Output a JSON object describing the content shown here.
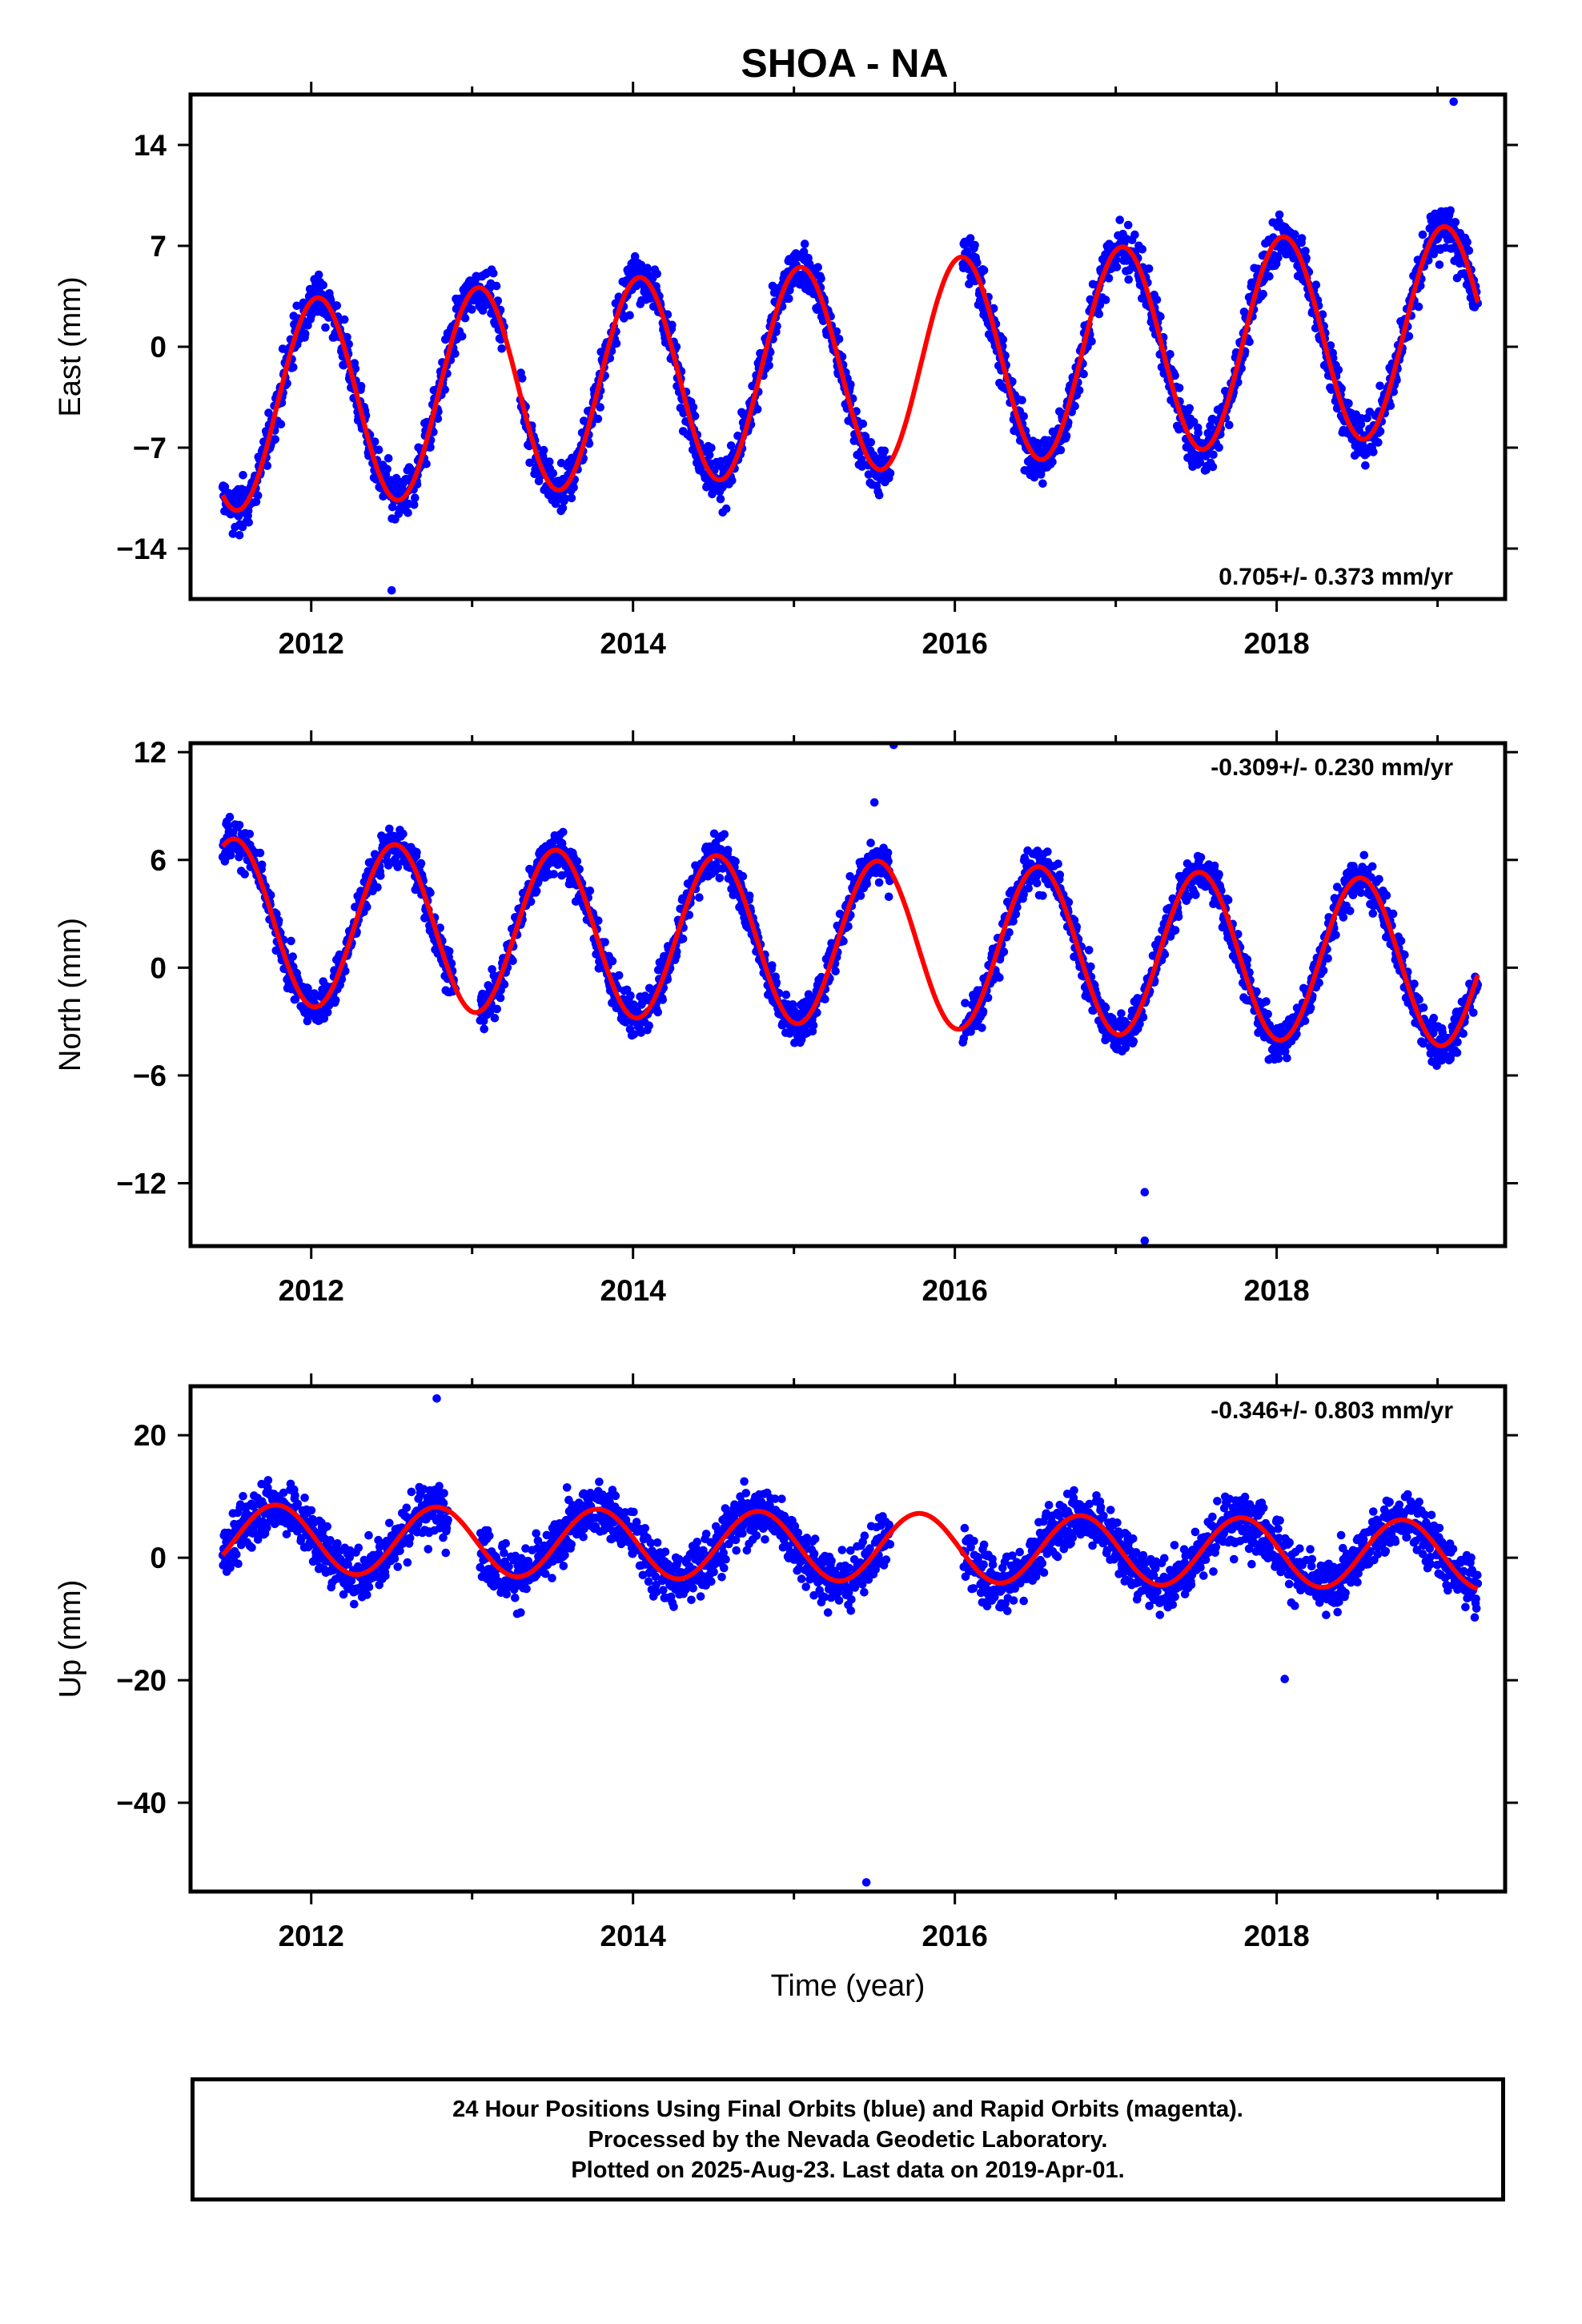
{
  "title": "SHOA - NA",
  "xlabel": "Time (year)",
  "caption": [
    "24 Hour Positions Using Final Orbits (blue) and Rapid Orbits (magenta).",
    "Processed by the Nevada Geodetic Laboratory.",
    "Plotted on 2025-Aug-23. Last data on 2019-Apr-01."
  ],
  "colors": {
    "data": "#0000ff",
    "model": "#ff0000",
    "frame": "#000000"
  },
  "chart_data": [
    {
      "type": "scatter",
      "ylabel": "East (mm)",
      "xlim": [
        2011.25,
        2019.42
      ],
      "ylim": [
        -17.5,
        17.5
      ],
      "xticks": [
        2012,
        2014,
        2016,
        2018
      ],
      "yticks": [
        14,
        7,
        0,
        -7,
        -14
      ],
      "rate_label": "0.705+/- 0.373 mm/yr",
      "rate_position": "bottom-right",
      "series": [
        {
          "kind": "model",
          "rate": 0.705,
          "offset": -1.5,
          "amplitude": 7.2,
          "peak": 0.04,
          "x_start": 2011.45,
          "x_end": 2019.25
        },
        {
          "kind": "daily-positions",
          "noise": 1.6,
          "data_ranges": [
            [
              2011.45,
              2013.2
            ],
            [
              2013.3,
              2015.6
            ],
            [
              2016.05,
              2019.25
            ]
          ],
          "outliers": [
            [
              2012.5,
              -16.9
            ],
            [
              2019.1,
              17.0
            ]
          ]
        }
      ]
    },
    {
      "type": "scatter",
      "ylabel": "North (mm)",
      "xlim": [
        2011.25,
        2019.42
      ],
      "ylim": [
        -15.5,
        12.5
      ],
      "xticks": [
        2012,
        2014,
        2016,
        2018
      ],
      "yticks": [
        12,
        6,
        0,
        -6,
        -12
      ],
      "rate_label": "-0.309+/- 0.230 mm/yr",
      "rate_position": "top-right",
      "series": [
        {
          "kind": "model",
          "rate": -0.309,
          "offset": 1.4,
          "amplitude": 4.6,
          "peak": 0.52,
          "x_start": 2011.45,
          "x_end": 2019.25
        },
        {
          "kind": "daily-positions",
          "noise": 1.1,
          "data_ranges": [
            [
              2011.45,
              2012.9
            ],
            [
              2013.05,
              2015.6
            ],
            [
              2016.05,
              2019.25
            ]
          ],
          "outliers": [
            [
              2015.62,
              12.4
            ],
            [
              2017.18,
              -12.5
            ],
            [
              2017.18,
              -15.2
            ],
            [
              2015.5,
              9.2
            ]
          ]
        }
      ]
    },
    {
      "type": "scatter",
      "ylabel": "Up (mm)",
      "xlim": [
        2011.25,
        2019.42
      ],
      "ylim": [
        -54.5,
        28.0
      ],
      "xticks": [
        2012,
        2014,
        2016,
        2018
      ],
      "yticks": [
        20,
        0,
        -20,
        -40
      ],
      "rate_label": "-0.346+/- 0.803 mm/yr",
      "rate_position": "top-right",
      "series": [
        {
          "kind": "model",
          "rate": -0.346,
          "offset": 1.8,
          "amplitude": 5.6,
          "peak": 0.78,
          "x_start": 2011.45,
          "x_end": 2019.25
        },
        {
          "kind": "daily-positions",
          "noise": 4.2,
          "data_ranges": [
            [
              2011.45,
              2012.85
            ],
            [
              2013.05,
              2015.6
            ],
            [
              2016.05,
              2019.25
            ]
          ],
          "outliers": [
            [
              2015.45,
              -53.0
            ],
            [
              2012.78,
              26.0
            ],
            [
              2018.05,
              -19.8
            ]
          ]
        }
      ]
    }
  ]
}
